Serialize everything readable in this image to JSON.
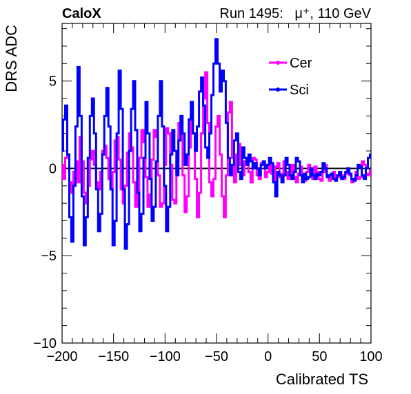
{
  "header": {
    "left": "CaloX",
    "right": "Run 1495:   μ⁺, 110 GeV"
  },
  "chart_data": {
    "type": "line",
    "xlabel": "Calibrated TS",
    "ylabel": "DRS ADC",
    "xlim": [
      -200,
      100
    ],
    "ylim": [
      -10,
      8.3
    ],
    "xticks": [
      -200,
      -150,
      -100,
      -50,
      0,
      50,
      100
    ],
    "xtick_labels": [
      "−200",
      "−150",
      "−100",
      "−50",
      "0",
      "50",
      "100"
    ],
    "yticks": [
      -10,
      -5,
      0,
      5
    ],
    "ytick_labels": [
      "−10",
      "−5",
      "0",
      "5"
    ],
    "reference_line_y": 0,
    "grid": false,
    "legend_position": "top-right",
    "series": [
      {
        "name": "Cer",
        "color": "#ff00ff",
        "points": [
          [
            -200,
            0.2
          ],
          [
            -198,
            -0.6
          ],
          [
            -196,
            0.6
          ],
          [
            -194,
            0.8
          ],
          [
            -192,
            -0.8
          ],
          [
            -190,
            -1.4
          ],
          [
            -188,
            -0.2
          ],
          [
            -186,
            0.4
          ],
          [
            -184,
            -0.8
          ],
          [
            -182,
            1.8
          ],
          [
            -180,
            0.4
          ],
          [
            -178,
            -1.4
          ],
          [
            -176,
            -2.0
          ],
          [
            -174,
            -1.0
          ],
          [
            -172,
            0.5
          ],
          [
            -170,
            1.0
          ],
          [
            -168,
            0.2
          ],
          [
            -166,
            -0.8
          ],
          [
            -164,
            -1.2
          ],
          [
            -162,
            -0.2
          ],
          [
            -160,
            1.0
          ],
          [
            -158,
            1.3
          ],
          [
            -156,
            0.6
          ],
          [
            -154,
            -0.6
          ],
          [
            -152,
            -1.2
          ],
          [
            -150,
            -0.2
          ],
          [
            -148,
            1.6
          ],
          [
            -146,
            1.8
          ],
          [
            -144,
            0.5
          ],
          [
            -142,
            -1.2
          ],
          [
            -140,
            -2.0
          ],
          [
            -138,
            -1.0
          ],
          [
            -136,
            0.9
          ],
          [
            -134,
            2.0
          ],
          [
            -132,
            1.2
          ],
          [
            -130,
            -0.8
          ],
          [
            -128,
            -2.2
          ],
          [
            -126,
            -1.4
          ],
          [
            -124,
            0.6
          ],
          [
            -122,
            2.2
          ],
          [
            -120,
            1.5
          ],
          [
            -118,
            -0.5
          ],
          [
            -116,
            -2.2
          ],
          [
            -114,
            -1.5
          ],
          [
            -112,
            0.5
          ],
          [
            -110,
            2.2
          ],
          [
            -108,
            1.8
          ],
          [
            -106,
            -0.4
          ],
          [
            -104,
            -2.2
          ],
          [
            -102,
            -2.0
          ],
          [
            -100,
            0.2
          ],
          [
            -98,
            2.3
          ],
          [
            -96,
            2.0
          ],
          [
            -94,
            0.2
          ],
          [
            -92,
            -1.8
          ],
          [
            -90,
            -2.0
          ],
          [
            -88,
            0.4
          ],
          [
            -86,
            2.6
          ],
          [
            -84,
            2.1
          ],
          [
            -82,
            -0.4
          ],
          [
            -80,
            -2.5
          ],
          [
            -78,
            -1.6
          ],
          [
            -76,
            1.2
          ],
          [
            -74,
            3.0
          ],
          [
            -72,
            2.0
          ],
          [
            -70,
            -0.6
          ],
          [
            -68,
            -2.8
          ],
          [
            -66,
            -1.4
          ],
          [
            -64,
            2.0
          ],
          [
            -62,
            4.0
          ],
          [
            -60,
            5.5
          ],
          [
            -58,
            2.6
          ],
          [
            -56,
            -0.8
          ],
          [
            -54,
            -1.6
          ],
          [
            -52,
            -0.6
          ],
          [
            -50,
            2.4
          ],
          [
            -48,
            3.0
          ],
          [
            -46,
            0.8
          ],
          [
            -44,
            -1.6
          ],
          [
            -42,
            -2.8
          ],
          [
            -40,
            -0.4
          ],
          [
            -38,
            3.2
          ],
          [
            -36,
            3.8
          ],
          [
            -34,
            0.6
          ],
          [
            -32,
            -0.8
          ],
          [
            -30,
            0.8
          ],
          [
            -28,
            1.4
          ],
          [
            -26,
            0.2
          ],
          [
            -24,
            -0.4
          ],
          [
            -22,
            0.4
          ],
          [
            -20,
            0.5
          ],
          [
            -18,
            -0.2
          ],
          [
            -16,
            -0.8
          ],
          [
            -14,
            0.6
          ],
          [
            -12,
            0.5
          ],
          [
            -10,
            -0.4
          ],
          [
            -8,
            -0.6
          ],
          [
            -6,
            0.3
          ],
          [
            -4,
            0.2
          ],
          [
            -2,
            -0.5
          ],
          [
            0,
            -0.2
          ],
          [
            2,
            0.4
          ],
          [
            4,
            -0.3
          ],
          [
            6,
            -0.7
          ],
          [
            8,
            0.1
          ],
          [
            10,
            0.3
          ],
          [
            12,
            -0.5
          ],
          [
            14,
            -0.3
          ],
          [
            16,
            0.4
          ],
          [
            18,
            -0.2
          ],
          [
            20,
            -0.6
          ],
          [
            22,
            -0.3
          ],
          [
            24,
            0.2
          ],
          [
            26,
            -0.5
          ],
          [
            28,
            -0.8
          ],
          [
            30,
            -0.3
          ],
          [
            32,
            0.1
          ],
          [
            34,
            -0.5
          ],
          [
            36,
            -0.7
          ],
          [
            38,
            -0.2
          ],
          [
            40,
            0.2
          ],
          [
            42,
            -0.4
          ],
          [
            44,
            -0.6
          ],
          [
            46,
            0.1
          ],
          [
            48,
            -0.2
          ],
          [
            50,
            -0.6
          ],
          [
            52,
            -0.7
          ],
          [
            54,
            -0.2
          ],
          [
            56,
            0.2
          ],
          [
            58,
            -0.4
          ],
          [
            60,
            -0.7
          ],
          [
            62,
            -0.5
          ],
          [
            64,
            -0.2
          ],
          [
            66,
            -0.6
          ],
          [
            68,
            -0.5
          ],
          [
            70,
            -0.2
          ],
          [
            72,
            -0.4
          ],
          [
            74,
            -0.6
          ],
          [
            76,
            -0.3
          ],
          [
            78,
            0.0
          ],
          [
            80,
            -0.4
          ],
          [
            82,
            -0.8
          ],
          [
            84,
            -0.7
          ],
          [
            86,
            -0.2
          ],
          [
            88,
            -0.6
          ],
          [
            90,
            -0.5
          ],
          [
            92,
            0.4
          ],
          [
            94,
            0.2
          ],
          [
            96,
            -0.3
          ],
          [
            98,
            -0.4
          ],
          [
            100,
            -0.1
          ]
        ]
      },
      {
        "name": "Sci",
        "color": "#0000ff",
        "points": [
          [
            -200,
            1.0
          ],
          [
            -198,
            2.8
          ],
          [
            -196,
            3.6
          ],
          [
            -194,
            0.8
          ],
          [
            -192,
            -2.8
          ],
          [
            -190,
            -4.2
          ],
          [
            -188,
            -1.0
          ],
          [
            -186,
            2.4
          ],
          [
            -184,
            5.8
          ],
          [
            -182,
            3.0
          ],
          [
            -180,
            -1.6
          ],
          [
            -178,
            -4.4
          ],
          [
            -176,
            -2.8
          ],
          [
            -174,
            0.6
          ],
          [
            -172,
            3.0
          ],
          [
            -170,
            4.0
          ],
          [
            -168,
            2.0
          ],
          [
            -166,
            -1.2
          ],
          [
            -164,
            -3.6
          ],
          [
            -162,
            -2.6
          ],
          [
            -160,
            0.8
          ],
          [
            -158,
            3.0
          ],
          [
            -156,
            4.6
          ],
          [
            -154,
            2.4
          ],
          [
            -152,
            -1.2
          ],
          [
            -150,
            -4.4
          ],
          [
            -148,
            -3.0
          ],
          [
            -146,
            2.0
          ],
          [
            -144,
            5.6
          ],
          [
            -142,
            3.4
          ],
          [
            -140,
            -1.2
          ],
          [
            -138,
            -4.6
          ],
          [
            -136,
            -3.2
          ],
          [
            -134,
            1.0
          ],
          [
            -132,
            3.4
          ],
          [
            -130,
            5.0
          ],
          [
            -128,
            2.2
          ],
          [
            -126,
            -1.4
          ],
          [
            -124,
            -3.6
          ],
          [
            -122,
            -2.6
          ],
          [
            -120,
            0.6
          ],
          [
            -118,
            3.8
          ],
          [
            -116,
            2.0
          ],
          [
            -114,
            -0.6
          ],
          [
            -112,
            -3.0
          ],
          [
            -110,
            -2.2
          ],
          [
            -108,
            0.4
          ],
          [
            -106,
            3.0
          ],
          [
            -104,
            5.0
          ],
          [
            -102,
            2.4
          ],
          [
            -100,
            -1.0
          ],
          [
            -98,
            -3.6
          ],
          [
            -96,
            -2.2
          ],
          [
            -94,
            0.8
          ],
          [
            -92,
            2.2
          ],
          [
            -90,
            1.0
          ],
          [
            -88,
            -0.4
          ],
          [
            -86,
            1.6
          ],
          [
            -84,
            3.0
          ],
          [
            -82,
            2.0
          ],
          [
            -80,
            0.2
          ],
          [
            -78,
            0.8
          ],
          [
            -76,
            2.8
          ],
          [
            -74,
            3.8
          ],
          [
            -72,
            2.0
          ],
          [
            -70,
            1.0
          ],
          [
            -68,
            2.4
          ],
          [
            -66,
            4.4
          ],
          [
            -64,
            5.2
          ],
          [
            -62,
            3.6
          ],
          [
            -60,
            1.2
          ],
          [
            -58,
            0.6
          ],
          [
            -56,
            2.0
          ],
          [
            -54,
            4.2
          ],
          [
            -52,
            6.0
          ],
          [
            -50,
            7.4
          ],
          [
            -48,
            6.0
          ],
          [
            -46,
            4.4
          ],
          [
            -44,
            5.6
          ],
          [
            -42,
            5.0
          ],
          [
            -40,
            2.6
          ],
          [
            -38,
            0.6
          ],
          [
            -36,
            -0.4
          ],
          [
            -34,
            0.2
          ],
          [
            -32,
            1.6
          ],
          [
            -30,
            2.0
          ],
          [
            -28,
            -0.2
          ],
          [
            -26,
            -0.6
          ],
          [
            -24,
            1.2
          ],
          [
            -22,
            0.6
          ],
          [
            -20,
            0.2
          ],
          [
            -18,
            0.8
          ],
          [
            -16,
            0.4
          ],
          [
            -14,
            0.0
          ],
          [
            -12,
            0.3
          ],
          [
            -10,
            0.0
          ],
          [
            -8,
            -0.4
          ],
          [
            -6,
            0.2
          ],
          [
            -4,
            0.4
          ],
          [
            -2,
            0.0
          ],
          [
            0,
            0.2
          ],
          [
            2,
            0.6
          ],
          [
            4,
            0.3
          ],
          [
            6,
            -0.8
          ],
          [
            8,
            -1.6
          ],
          [
            10,
            -0.2
          ],
          [
            12,
            -0.4
          ],
          [
            14,
            -0.8
          ],
          [
            16,
            -0.4
          ],
          [
            18,
            0.6
          ],
          [
            20,
            0.2
          ],
          [
            22,
            -0.4
          ],
          [
            24,
            -0.6
          ],
          [
            26,
            -0.2
          ],
          [
            28,
            0.6
          ],
          [
            30,
            0.4
          ],
          [
            32,
            -0.4
          ],
          [
            34,
            -0.8
          ],
          [
            36,
            -0.3
          ],
          [
            38,
            -0.6
          ],
          [
            40,
            -0.5
          ],
          [
            42,
            0.0
          ],
          [
            44,
            -0.4
          ],
          [
            46,
            -0.6
          ],
          [
            48,
            -0.3
          ],
          [
            50,
            -0.4
          ],
          [
            52,
            -0.2
          ],
          [
            54,
            0.3
          ],
          [
            56,
            0.0
          ],
          [
            58,
            -0.5
          ],
          [
            60,
            -0.4
          ],
          [
            62,
            -0.3
          ],
          [
            64,
            -0.6
          ],
          [
            66,
            -0.7
          ],
          [
            68,
            -0.4
          ],
          [
            70,
            -0.2
          ],
          [
            72,
            -0.6
          ],
          [
            74,
            -0.5
          ],
          [
            76,
            -0.2
          ],
          [
            78,
            0.0
          ],
          [
            80,
            -0.3
          ],
          [
            82,
            -0.6
          ],
          [
            84,
            -0.7
          ],
          [
            86,
            -0.4
          ],
          [
            88,
            0.2
          ],
          [
            90,
            0.1
          ],
          [
            92,
            -0.4
          ],
          [
            94,
            -0.6
          ],
          [
            96,
            0.0
          ],
          [
            98,
            0.6
          ],
          [
            100,
            0.8
          ]
        ]
      }
    ]
  }
}
